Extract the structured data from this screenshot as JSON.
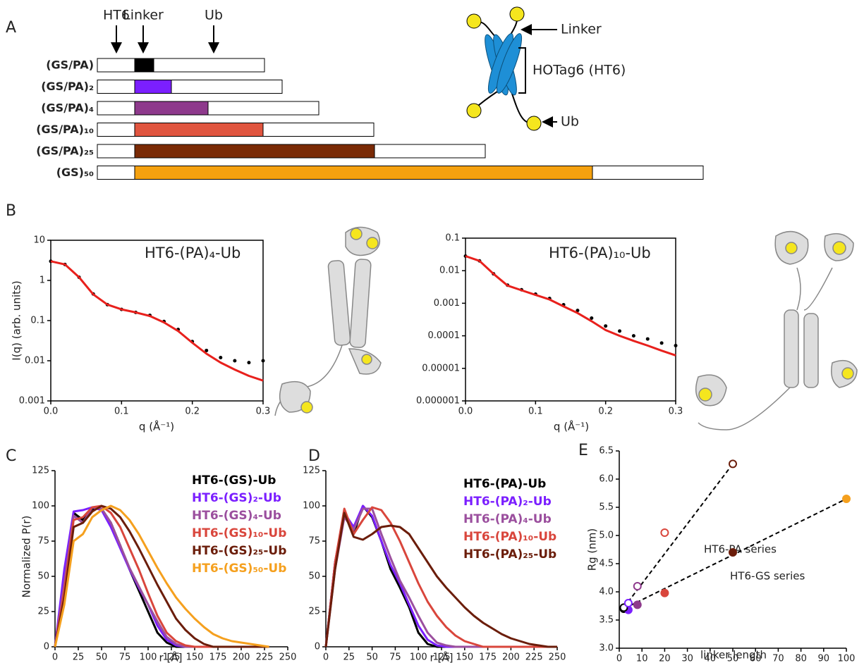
{
  "panel_labels": [
    "A",
    "B",
    "C",
    "D",
    "E"
  ],
  "diagram": {
    "pointers": [
      "HT6",
      "Linker",
      "Ub"
    ],
    "constructs": [
      {
        "name": "(GS/PA)",
        "color": "#000000"
      },
      {
        "name": "(GS/PA)₂",
        "color": "#7b1fff"
      },
      {
        "name": "(GS/PA)₄",
        "color": "#8e3a8c"
      },
      {
        "name": "(GS/PA)₁₀",
        "color": "#e0553f"
      },
      {
        "name": "(GS/PA)₂₅",
        "color": "#7a2a05"
      },
      {
        "name": "(GS)₅₀",
        "color": "#f5a10f"
      }
    ],
    "schematic_labels": [
      "Linker",
      "HOTag6 (HT6)",
      "Ub"
    ]
  },
  "chart_data": [
    {
      "type": "line",
      "annotation": "HT6-(PA)₄-Ub",
      "xlabel": "q (Å⁻¹)",
      "ylabel": "I(q) (arb. units)",
      "log_y": true,
      "frame": true,
      "xlim": [
        0,
        0.3
      ],
      "xticks": [
        {
          "value": 0,
          "label": "0.0"
        },
        0.1,
        0.2,
        0.3
      ],
      "ylim": [
        0.001,
        10
      ],
      "yticks": [
        0.001,
        0.01,
        0.1,
        1,
        10
      ],
      "x": [
        0,
        0.02,
        0.04,
        0.06,
        0.08,
        0.1,
        0.12,
        0.14,
        0.16,
        0.18,
        0.2,
        0.22,
        0.24,
        0.26,
        0.28,
        0.3
      ],
      "series": [
        {
          "color": "#000000",
          "mode": "points",
          "values": [
            3.0,
            2.5,
            1.2,
            0.46,
            0.25,
            0.19,
            0.16,
            0.135,
            0.095,
            0.06,
            0.03,
            0.018,
            0.012,
            0.01,
            0.009,
            0.01
          ]
        },
        {
          "color": "#e8201c",
          "mode": "line",
          "values": [
            3.0,
            2.5,
            1.2,
            0.45,
            0.25,
            0.19,
            0.16,
            0.13,
            0.09,
            0.055,
            0.028,
            0.015,
            0.009,
            0.006,
            0.0042,
            0.0032
          ]
        }
      ]
    },
    {
      "type": "line",
      "annotation": "HT6-(PA)₁₀-Ub",
      "xlabel": "q (Å⁻¹)",
      "log_y": true,
      "frame": true,
      "xlim": [
        0,
        0.3
      ],
      "xticks": [
        {
          "value": 0,
          "label": "0.0"
        },
        0.1,
        0.2,
        0.3
      ],
      "ylim": [
        1e-06,
        0.1
      ],
      "yticks": [
        1e-06,
        1e-05,
        0.0001,
        0.001,
        0.01,
        0.1
      ],
      "x": [
        0,
        0.02,
        0.04,
        0.06,
        0.08,
        0.1,
        0.12,
        0.14,
        0.16,
        0.18,
        0.2,
        0.22,
        0.24,
        0.26,
        0.28,
        0.3
      ],
      "series": [
        {
          "color": "#000000",
          "mode": "points",
          "values": [
            0.028,
            0.02,
            0.008,
            0.0036,
            0.0026,
            0.0019,
            0.0014,
            0.0009,
            0.0006,
            0.00035,
            0.0002,
            0.00014,
            0.0001,
            8e-05,
            6e-05,
            5e-05
          ]
        },
        {
          "color": "#e8201c",
          "mode": "line",
          "values": [
            0.028,
            0.02,
            0.008,
            0.0035,
            0.0025,
            0.0018,
            0.0013,
            0.0008,
            0.0005,
            0.00028,
            0.00015,
            0.0001,
            7e-05,
            5e-05,
            3.5e-05,
            2.5e-05
          ]
        }
      ]
    },
    {
      "type": "line",
      "xlabel": "r [Å]",
      "ylabel": "Normalized P(r)",
      "legend": "upper right",
      "xlim": [
        0,
        250
      ],
      "xticks": [
        0,
        25,
        50,
        75,
        100,
        125,
        150,
        175,
        200,
        225,
        250
      ],
      "ylim": [
        0,
        125
      ],
      "yticks": [
        0,
        25,
        50,
        75,
        100,
        125
      ],
      "x": [
        0,
        10,
        20,
        30,
        40,
        50,
        60,
        70,
        80,
        90,
        100,
        110,
        120,
        130,
        140,
        150,
        160,
        170,
        180,
        190,
        200,
        210,
        220,
        230
      ],
      "series": [
        {
          "name": "HT6-(GS)-Ub",
          "color": "#000000",
          "mode": "line",
          "values": [
            0,
            50,
            95,
            90,
            98,
            98,
            88,
            72,
            55,
            40,
            25,
            10,
            3,
            0,
            0,
            0,
            0,
            0,
            0,
            0,
            0,
            0,
            0,
            0
          ]
        },
        {
          "name": "HT6-(GS)₂-Ub",
          "color": "#7b1fff",
          "mode": "line",
          "values": [
            0,
            55,
            96,
            97,
            99,
            97,
            85,
            70,
            55,
            42,
            30,
            15,
            5,
            1,
            0,
            0,
            0,
            0,
            0,
            0,
            0,
            0,
            0,
            0
          ]
        },
        {
          "name": "HT6-(GS)₄-Ub",
          "color": "#9b4f9e",
          "mode": "line",
          "values": [
            0,
            45,
            93,
            88,
            99,
            98,
            88,
            72,
            56,
            43,
            30,
            18,
            7,
            2,
            0,
            0,
            0,
            0,
            0,
            0,
            0,
            0,
            0,
            0
          ]
        },
        {
          "name": "HT6-(GS)₁₀-Ub",
          "color": "#d9463c",
          "mode": "line",
          "values": [
            0,
            40,
            90,
            92,
            99,
            100,
            95,
            85,
            70,
            55,
            38,
            22,
            10,
            4,
            1,
            0,
            0,
            0,
            0,
            0,
            0,
            0,
            0,
            0
          ]
        },
        {
          "name": "HT6-(GS)₂₅-Ub",
          "color": "#6b1d0a",
          "mode": "line",
          "values": [
            0,
            35,
            85,
            88,
            96,
            100,
            98,
            92,
            82,
            70,
            57,
            44,
            32,
            20,
            12,
            6,
            2,
            0,
            0,
            0,
            0,
            0,
            0,
            0
          ]
        },
        {
          "name": "HT6-(GS)₅₀-Ub",
          "color": "#f5a01e",
          "mode": "line",
          "values": [
            0,
            30,
            75,
            80,
            92,
            97,
            100,
            97,
            90,
            80,
            68,
            56,
            45,
            35,
            27,
            20,
            14,
            9,
            6,
            4,
            3,
            2,
            1,
            0
          ]
        }
      ]
    },
    {
      "type": "line",
      "xlabel": "r [Å]",
      "legend": "upper right",
      "xlim": [
        0,
        250
      ],
      "xticks": [
        0,
        25,
        50,
        75,
        100,
        125,
        150,
        175,
        200,
        225,
        250
      ],
      "ylim": [
        0,
        125
      ],
      "yticks": [
        0,
        25,
        50,
        75,
        100,
        125
      ],
      "x": [
        0,
        10,
        20,
        30,
        40,
        50,
        60,
        70,
        80,
        90,
        100,
        110,
        120,
        130,
        140,
        150,
        160,
        170,
        180,
        190,
        200,
        210,
        220,
        230,
        240,
        250
      ],
      "series": [
        {
          "name": "HT6-(PA)-Ub",
          "color": "#000000",
          "mode": "line",
          "values": [
            0,
            60,
            95,
            80,
            100,
            92,
            75,
            55,
            42,
            28,
            10,
            2,
            0,
            0,
            0,
            0,
            0,
            0,
            0,
            0,
            0,
            0,
            0,
            0,
            0,
            0
          ]
        },
        {
          "name": "HT6-(PA)₂-Ub",
          "color": "#7b1fff",
          "mode": "line",
          "values": [
            0,
            60,
            95,
            85,
            100,
            93,
            75,
            58,
            45,
            30,
            15,
            5,
            1,
            0,
            0,
            0,
            0,
            0,
            0,
            0,
            0,
            0,
            0,
            0,
            0,
            0
          ]
        },
        {
          "name": "HT6-(PA)₄-Ub",
          "color": "#9b4f9e",
          "mode": "line",
          "values": [
            0,
            55,
            92,
            83,
            98,
            98,
            80,
            63,
            47,
            35,
            22,
            10,
            3,
            1,
            0,
            0,
            0,
            0,
            0,
            0,
            0,
            0,
            0,
            0,
            0,
            0
          ]
        },
        {
          "name": "HT6-(PA)₁₀-Ub",
          "color": "#d9463c",
          "mode": "line",
          "values": [
            0,
            60,
            98,
            80,
            90,
            99,
            97,
            88,
            75,
            60,
            45,
            32,
            22,
            14,
            8,
            4,
            2,
            0,
            0,
            0,
            0,
            0,
            0,
            0,
            0,
            0
          ]
        },
        {
          "name": "HT6-(PA)₂₅-Ub",
          "color": "#6b1d0a",
          "mode": "line",
          "values": [
            0,
            55,
            95,
            78,
            76,
            80,
            85,
            86,
            85,
            80,
            70,
            60,
            50,
            42,
            35,
            28,
            22,
            17,
            13,
            9,
            6,
            4,
            2,
            1,
            0,
            0
          ]
        }
      ]
    },
    {
      "type": "scatter",
      "xlabel": "linker length",
      "ylabel": "Rg (nm)",
      "annotations": [
        "HT6-PA series",
        "HT6-GS series"
      ],
      "trendline": true,
      "xlim": [
        0,
        100
      ],
      "xticks": [
        0,
        10,
        20,
        30,
        40,
        50,
        60,
        70,
        80,
        90,
        100
      ],
      "ylim": [
        3.0,
        6.5
      ],
      "yticks": [
        {
          "value": 3,
          "label": "3.0"
        },
        3.5,
        {
          "value": 4,
          "label": "4.0"
        },
        4.5,
        {
          "value": 5,
          "label": "5.0"
        },
        5.5,
        {
          "value": 6,
          "label": "6.0"
        },
        6.5
      ],
      "series": [
        {
          "marker": "filled",
          "x": [
            2,
            4,
            8,
            20,
            50,
            100
          ],
          "values": [
            3.7,
            3.68,
            3.77,
            3.98,
            4.7,
            5.65
          ],
          "colors": [
            "#000000",
            "#7b1fff",
            "#8e3a8c",
            "#d9463c",
            "#6b1d0a",
            "#f5a01e"
          ]
        },
        {
          "marker": "open",
          "x": [
            2,
            4,
            8,
            20,
            50
          ],
          "values": [
            3.72,
            3.8,
            4.1,
            5.05,
            6.27
          ],
          "colors": [
            "#000000",
            "#7b1fff",
            "#8e3a8c",
            "#d9463c",
            "#6b1d0a"
          ]
        }
      ]
    }
  ]
}
